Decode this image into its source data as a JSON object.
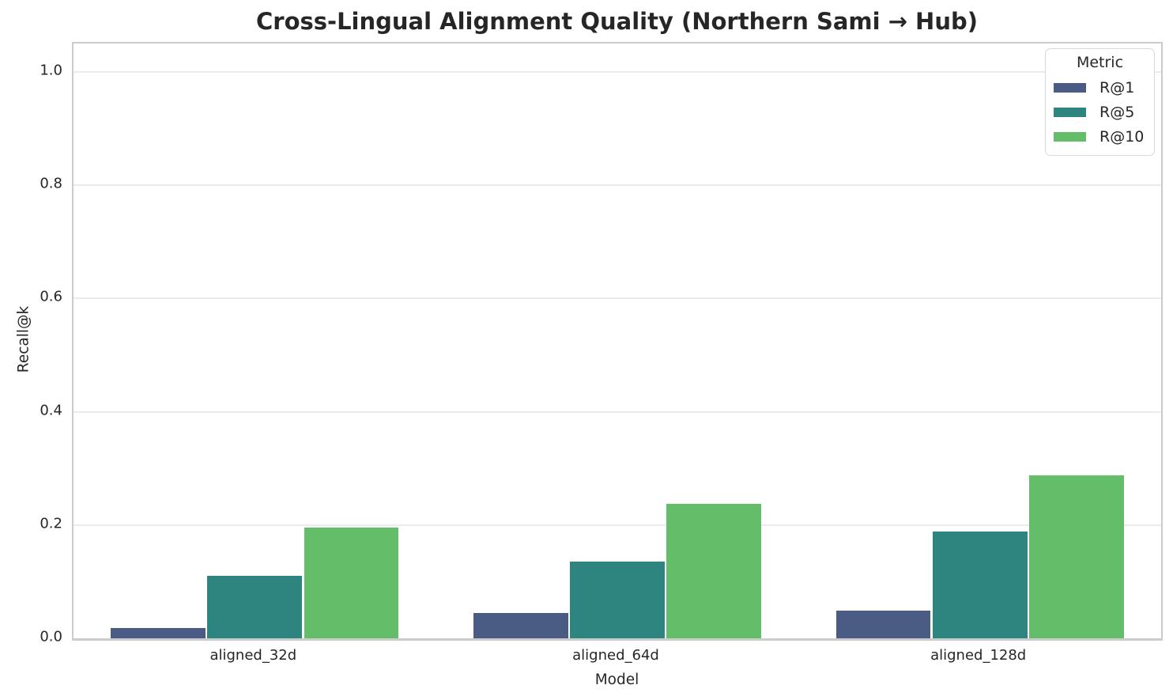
{
  "chart_data": {
    "type": "bar",
    "title": "Cross-Lingual Alignment Quality (Northern Sami → Hub)",
    "xlabel": "Model",
    "ylabel": "Recall@k",
    "categories": [
      "aligned_32d",
      "aligned_64d",
      "aligned_128d"
    ],
    "series": [
      {
        "name": "R@1",
        "color": "#4a5b84",
        "values": [
          0.018,
          0.045,
          0.049
        ]
      },
      {
        "name": "R@5",
        "color": "#2e857f",
        "values": [
          0.11,
          0.136,
          0.189
        ]
      },
      {
        "name": "R@10",
        "color": "#64bd68",
        "values": [
          0.196,
          0.238,
          0.288
        ]
      }
    ],
    "legend": {
      "title": "Metric",
      "position": "upper right"
    },
    "ylim": [
      0,
      1.05
    ],
    "yticks": [
      0.0,
      0.2,
      0.4,
      0.6,
      0.8,
      1.0
    ],
    "ytick_labels": [
      "0.0",
      "0.2",
      "0.4",
      "0.6",
      "0.8",
      "1.0"
    ],
    "grid": true,
    "colors": {
      "text": "#262626",
      "gridline": "#ebebeb",
      "spine": "#cccccc",
      "background": "#ffffff"
    }
  }
}
